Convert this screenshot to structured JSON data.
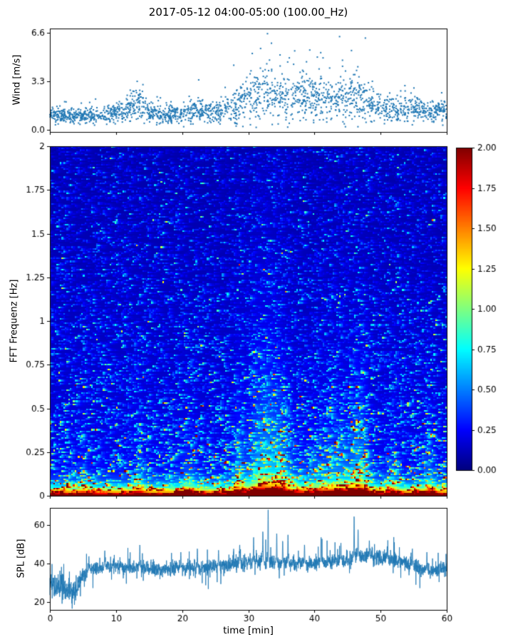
{
  "figure": {
    "title": "2017-05-12 04:00-05:00 (100.00_Hz)",
    "background": "#ffffff"
  },
  "chart_data": [
    {
      "id": "wind",
      "type": "scatter",
      "ylabel": "Wind [m/s]",
      "xlim": [
        0,
        60
      ],
      "ylim": [
        -0.15,
        6.9
      ],
      "yticks": [
        0.0,
        3.3,
        6.6
      ],
      "ytick_labels": [
        "0.0",
        "3.3",
        "6.6"
      ],
      "xticks": [
        0,
        10,
        20,
        30,
        40,
        50,
        60
      ],
      "marker_color": "#1f77b4",
      "n_points": 2000,
      "envelope": {
        "t": [
          0,
          3,
          6,
          9,
          12,
          13.5,
          15,
          17,
          20,
          23,
          26,
          28,
          30,
          32,
          34,
          36,
          38,
          40,
          42,
          44,
          46,
          48,
          50,
          52,
          55,
          58,
          60
        ],
        "mean": [
          1.0,
          0.95,
          1.0,
          1.05,
          1.5,
          1.9,
          1.15,
          0.95,
          1.2,
          1.25,
          1.3,
          1.6,
          2.1,
          2.4,
          2.2,
          2.3,
          2.2,
          2.3,
          2.1,
          2.2,
          2.3,
          1.9,
          1.5,
          1.35,
          1.5,
          1.3,
          1.4
        ],
        "spread": [
          0.35,
          0.3,
          0.35,
          0.4,
          0.6,
          0.85,
          0.45,
          0.35,
          0.5,
          0.5,
          0.55,
          0.8,
          1.0,
          1.2,
          1.0,
          1.1,
          1.0,
          1.05,
          1.0,
          1.05,
          1.15,
          0.9,
          0.65,
          0.55,
          0.6,
          0.5,
          0.55
        ]
      },
      "outliers": [
        [
          30.6,
          5.2
        ],
        [
          32.9,
          6.55
        ],
        [
          33.5,
          5.9
        ],
        [
          34.8,
          5.1
        ],
        [
          36.2,
          4.9
        ],
        [
          43.8,
          6.35
        ],
        [
          45.6,
          5.4
        ],
        [
          47.7,
          6.25
        ],
        [
          13.2,
          3.3
        ],
        [
          27.8,
          4.4
        ],
        [
          41.3,
          4.9
        ],
        [
          22.5,
          3.4
        ]
      ]
    },
    {
      "id": "spectrogram",
      "type": "heatmap",
      "ylabel": "FFT Frequenz [Hz]",
      "xlim": [
        0,
        60
      ],
      "ylim": [
        0,
        2
      ],
      "yticks": [
        0,
        0.25,
        0.5,
        0.75,
        1,
        1.25,
        1.5,
        1.75,
        2
      ],
      "ytick_labels": [
        "0",
        "0.25",
        "0.5",
        "0.75",
        "1",
        "1.25",
        "1.5",
        "1.75",
        "2"
      ],
      "xticks": [
        0,
        10,
        20,
        30,
        40,
        50,
        60
      ],
      "colormap": "jet",
      "vmin": 0,
      "vmax": 2,
      "grid": {
        "nx": 240,
        "ny": 220
      },
      "events": [
        {
          "t": 32.5,
          "w": 2.5,
          "s": 0.7,
          "fs": 0.6
        },
        {
          "t": 35,
          "w": 1.2,
          "s": 0.4,
          "fs": 0.4
        },
        {
          "t": 39,
          "w": 9,
          "s": 0.22,
          "fs": 0.35
        },
        {
          "t": 44,
          "w": 3,
          "s": 0.35,
          "fs": 0.4
        },
        {
          "t": 47,
          "w": 1.3,
          "s": 0.5,
          "fs": 0.5
        },
        {
          "t": 21,
          "w": 1.2,
          "s": 0.3,
          "fs": 0.3
        },
        {
          "t": 13.5,
          "w": 0.9,
          "s": 0.3,
          "fs": 0.3
        },
        {
          "t": 28.5,
          "w": 0.8,
          "s": 0.35,
          "fs": 0.45
        },
        {
          "t": 57.5,
          "w": 0.9,
          "s": 0.35,
          "fs": 0.3
        },
        {
          "t": 52,
          "w": 0.8,
          "s": 0.25,
          "fs": 0.3
        },
        {
          "t": 5,
          "w": 0.7,
          "s": 0.2,
          "fs": 0.25
        }
      ]
    },
    {
      "id": "spl",
      "type": "line",
      "ylabel": "SPL [dB]",
      "xlabel": "time [min]",
      "xlim": [
        0,
        60
      ],
      "ylim": [
        16,
        69
      ],
      "yticks": [
        20,
        40,
        60
      ],
      "ytick_labels": [
        "20",
        "40",
        "60"
      ],
      "xticks": [
        0,
        10,
        20,
        30,
        40,
        50,
        60
      ],
      "xtick_labels": [
        "0",
        "10",
        "20",
        "30",
        "40",
        "50",
        "60"
      ],
      "line_color": "#1f77b4",
      "base": {
        "t": [
          0,
          1,
          2.5,
          4,
          5,
          6,
          8,
          10,
          12,
          14,
          17,
          20,
          23,
          26,
          29,
          31,
          33,
          35,
          38,
          41,
          44,
          47,
          50,
          52,
          54,
          56,
          58,
          60
        ],
        "v": [
          31,
          28,
          26,
          27,
          34,
          37,
          38,
          39,
          38,
          38,
          37,
          38,
          38,
          39,
          40,
          41,
          41,
          40,
          40,
          41,
          42,
          44,
          43,
          42,
          40,
          37,
          36,
          38
        ]
      },
      "noise": {
        "t": [
          0,
          3.5,
          5,
          28,
          33,
          36,
          60
        ],
        "v": [
          3.4,
          3.0,
          1.9,
          1.9,
          2.6,
          1.9,
          1.9
        ]
      },
      "spikes": [
        [
          33,
          68
        ],
        [
          32.2,
          57
        ],
        [
          30.8,
          54
        ],
        [
          46,
          65
        ],
        [
          46.6,
          58
        ],
        [
          13.6,
          50
        ],
        [
          8.3,
          47
        ],
        [
          19.8,
          46
        ],
        [
          22.3,
          48
        ],
        [
          36,
          55
        ],
        [
          38.5,
          50
        ],
        [
          41,
          54
        ],
        [
          44,
          51
        ],
        [
          48.3,
          52
        ],
        [
          51,
          49
        ],
        [
          54.8,
          48
        ],
        [
          57,
          46
        ],
        [
          5.9,
          44
        ],
        [
          25.5,
          47
        ],
        [
          28.7,
          50
        ],
        [
          34.3,
          56
        ],
        [
          35.2,
          52
        ]
      ]
    }
  ],
  "colorbar": {
    "vmin": 0,
    "vmax": 2,
    "colormap": "jet",
    "ticks": [
      0,
      0.25,
      0.5,
      0.75,
      1,
      1.25,
      1.5,
      1.75,
      2
    ],
    "tick_labels": [
      "0.00",
      "0.25",
      "0.50",
      "0.75",
      "1.00",
      "1.25",
      "1.50",
      "1.75",
      "2.00"
    ]
  }
}
